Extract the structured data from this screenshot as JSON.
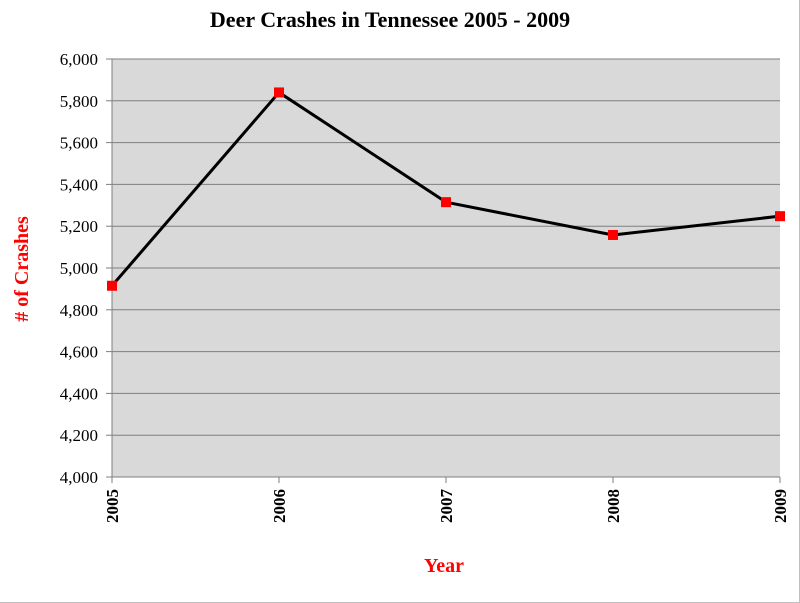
{
  "chart_data": {
    "type": "line",
    "title": "Deer Crashes in Tennessee 2005 - 2009",
    "xlabel": "Year",
    "ylabel": "# of Crashes",
    "categories": [
      "2005",
      "2006",
      "2007",
      "2008",
      "2009"
    ],
    "series": [
      {
        "values": [
          4915,
          5840,
          5315,
          5158,
          5248
        ]
      }
    ],
    "ylim": [
      4000,
      6000
    ],
    "y_ticks": [
      4000,
      4200,
      4400,
      4600,
      4800,
      5000,
      5200,
      5400,
      5600,
      5800,
      6000
    ],
    "y_tick_labels": [
      "4,000",
      "4,200",
      "4,400",
      "4,600",
      "4,800",
      "5,000",
      "5,200",
      "5,400",
      "5,600",
      "5,800",
      "6,000"
    ],
    "grid": "horizontal",
    "legend": "none",
    "colors": {
      "plot_background": "#d9d9d9",
      "gridline": "#7f7f7f",
      "line": "#000000",
      "marker": "#ff0000",
      "axis_title": "#ff0000"
    }
  }
}
